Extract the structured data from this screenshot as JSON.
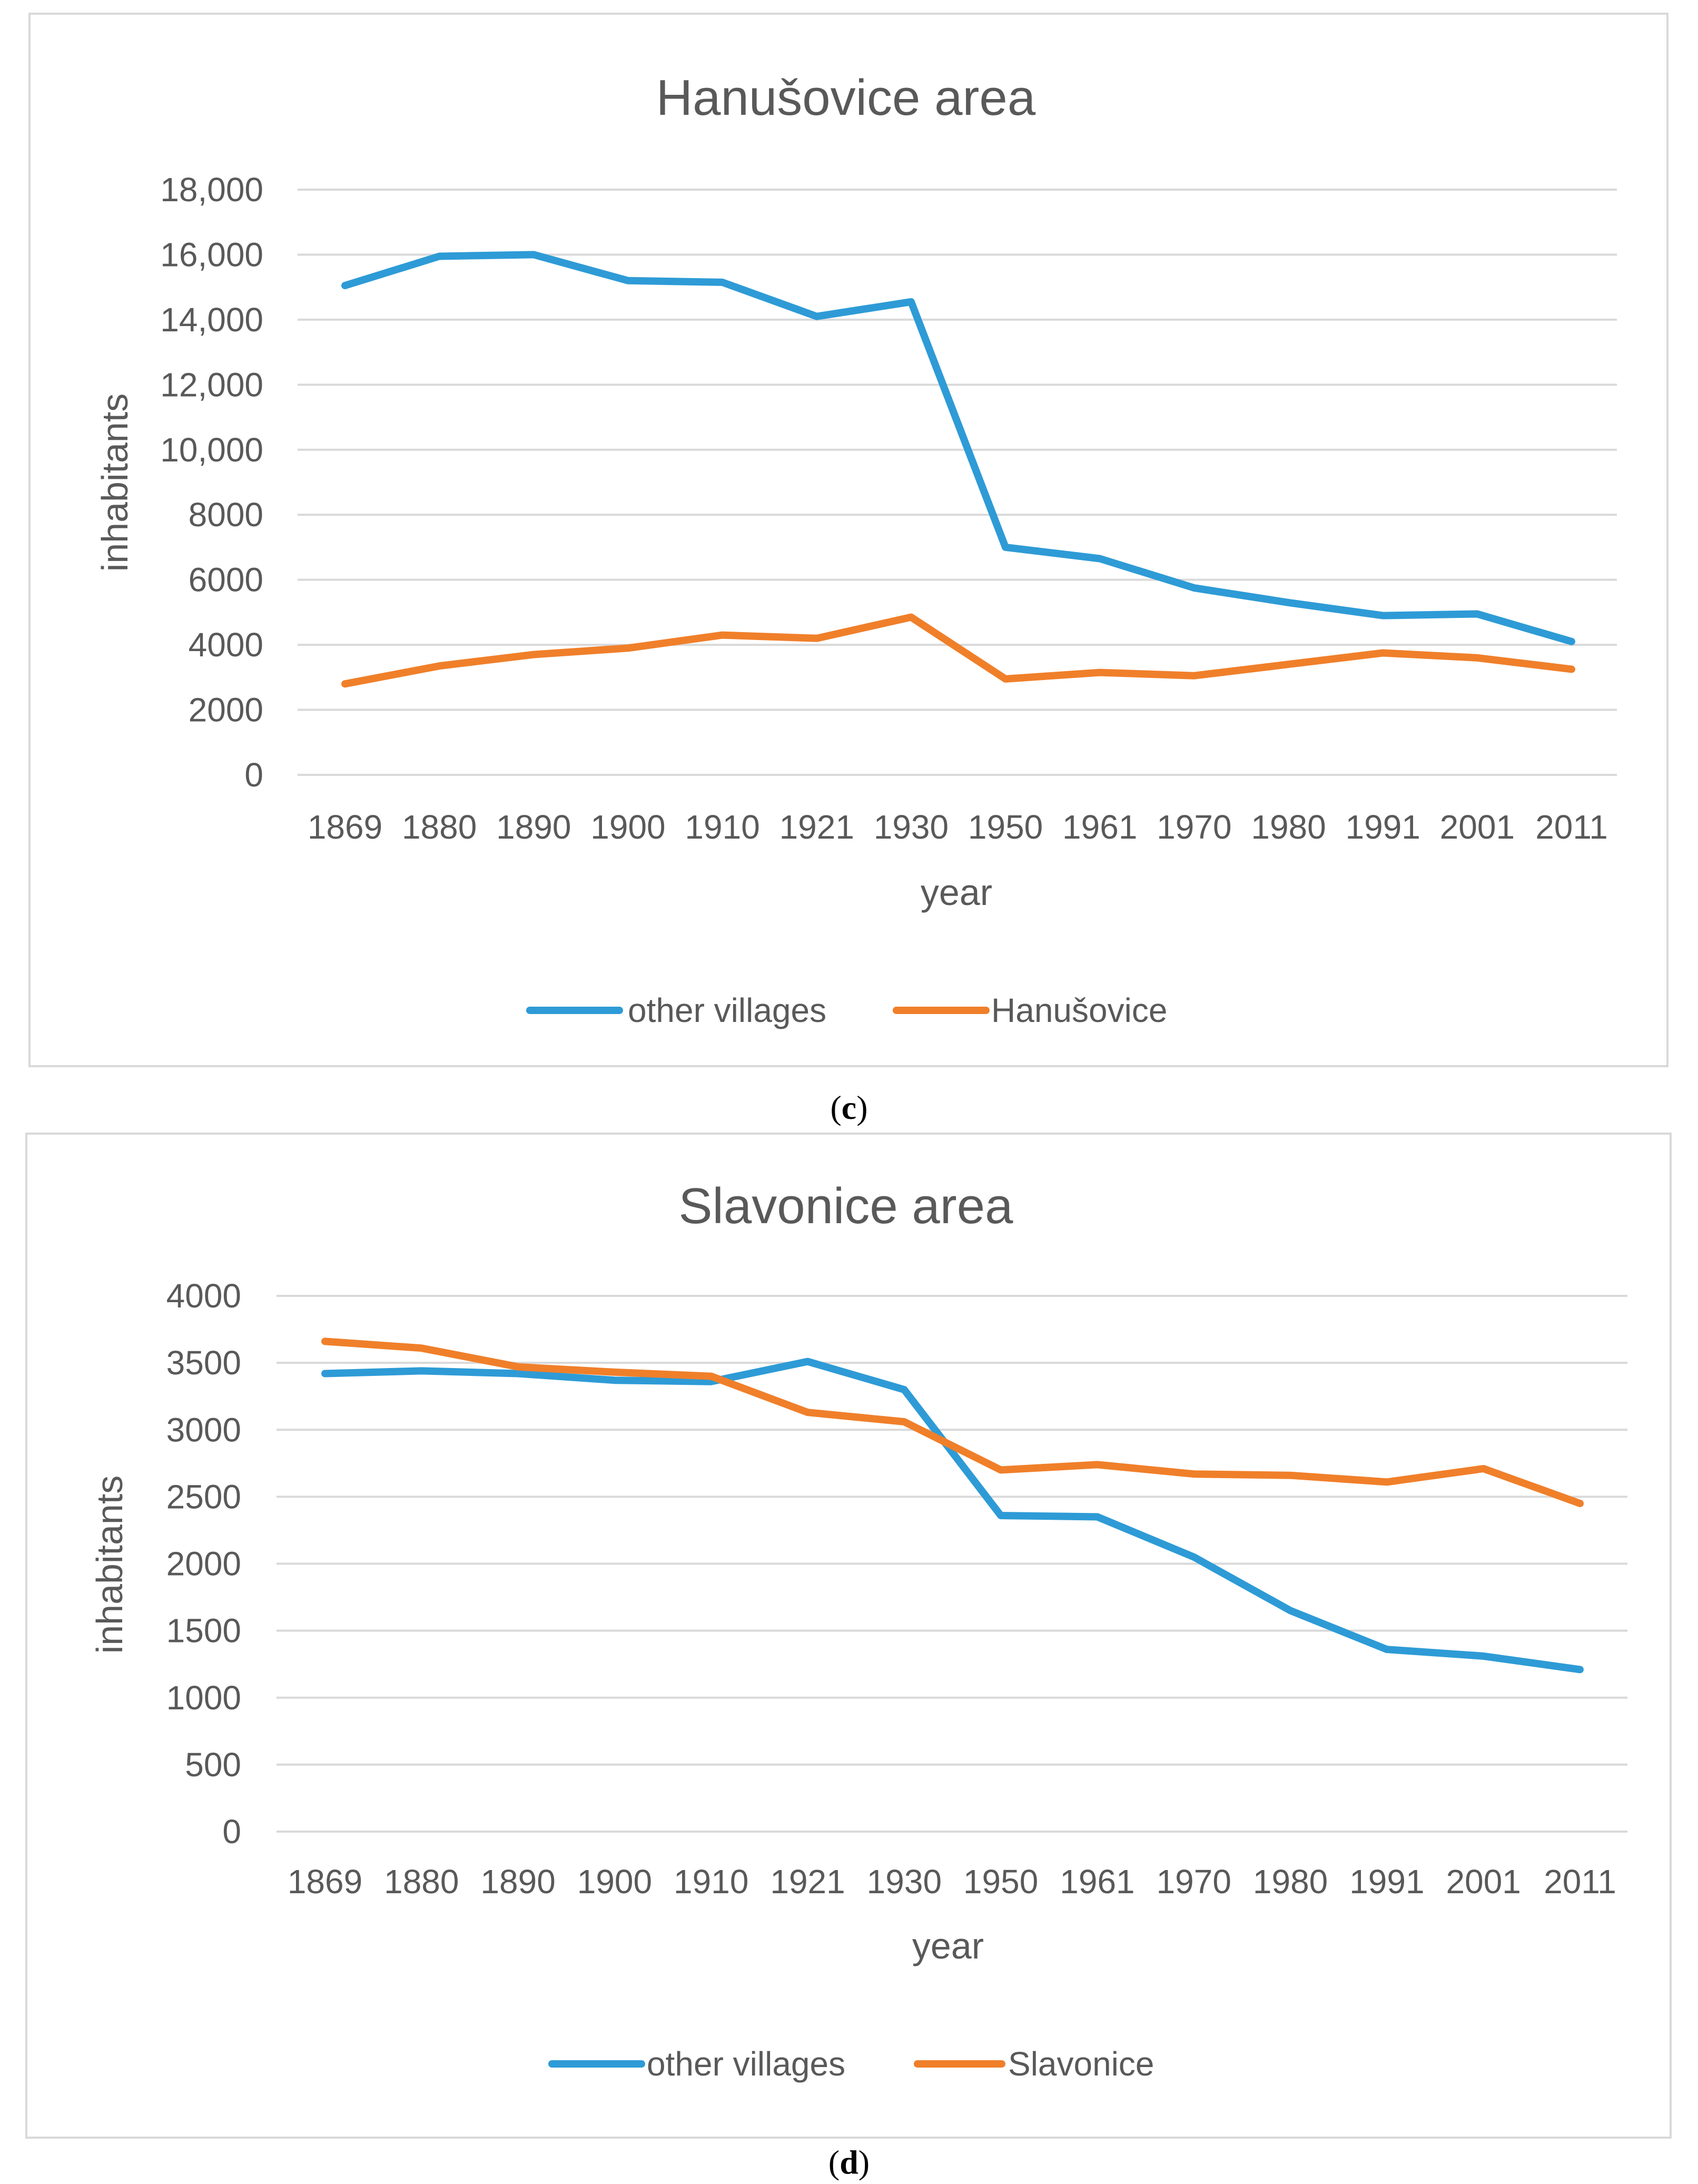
{
  "colors": {
    "other_villages": "#2e9bd6",
    "town": "#f07f2a"
  },
  "chart_data": [
    {
      "type": "line",
      "title": "Hanušovice area",
      "xlabel": "year",
      "ylabel": "inhabitants",
      "ylim": [
        0,
        18000
      ],
      "yticks": [
        0,
        2000,
        4000,
        6000,
        8000,
        10000,
        12000,
        14000,
        16000,
        18000
      ],
      "ytick_labels": [
        "0",
        "2000",
        "4000",
        "6000",
        "8000",
        "10,000",
        "12,000",
        "14,000",
        "16,000",
        "18,000"
      ],
      "categories": [
        "1869",
        "1880",
        "1890",
        "1900",
        "1910",
        "1921",
        "1930",
        "1950",
        "1961",
        "1970",
        "1980",
        "1991",
        "2001",
        "2011"
      ],
      "series": [
        {
          "name": "other villages",
          "color": "#2e9bd6",
          "values": [
            15050,
            15950,
            16000,
            15200,
            15150,
            14100,
            14550,
            7000,
            6650,
            5750,
            5300,
            4900,
            4950,
            4100
          ]
        },
        {
          "name": "Hanušovice",
          "color": "#f07f2a",
          "values": [
            2800,
            3350,
            3700,
            3900,
            4300,
            4200,
            4850,
            2950,
            3150,
            3050,
            3400,
            3750,
            3600,
            3250
          ]
        }
      ],
      "legend": "bottom",
      "caption": "c"
    },
    {
      "type": "line",
      "title": "Slavonice area",
      "xlabel": "year",
      "ylabel": "inhabitants",
      "ylim": [
        0,
        4000
      ],
      "yticks": [
        0,
        500,
        1000,
        1500,
        2000,
        2500,
        3000,
        3500,
        4000
      ],
      "ytick_labels": [
        "0",
        "500",
        "1000",
        "1500",
        "2000",
        "2500",
        "3000",
        "3500",
        "4000"
      ],
      "categories": [
        "1869",
        "1880",
        "1890",
        "1900",
        "1910",
        "1921",
        "1930",
        "1950",
        "1961",
        "1970",
        "1980",
        "1991",
        "2001",
        "2011"
      ],
      "series": [
        {
          "name": "other villages",
          "color": "#2e9bd6",
          "values": [
            3420,
            3440,
            3420,
            3370,
            3360,
            3510,
            3300,
            2360,
            2350,
            2050,
            1650,
            1360,
            1310,
            1210
          ]
        },
        {
          "name": "Slavonice",
          "color": "#f07f2a",
          "values": [
            3660,
            3610,
            3470,
            3430,
            3400,
            3130,
            3060,
            2700,
            2740,
            2670,
            2660,
            2610,
            2710,
            2450
          ]
        }
      ],
      "legend": "bottom",
      "caption": "d"
    }
  ]
}
